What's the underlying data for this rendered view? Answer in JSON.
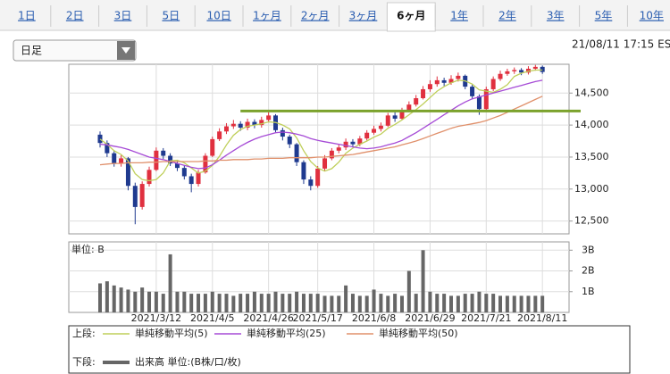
{
  "tabs": [
    {
      "label": "1日",
      "active": false
    },
    {
      "label": "2日",
      "active": false
    },
    {
      "label": "3日",
      "active": false
    },
    {
      "label": "5日",
      "active": false
    },
    {
      "label": "10日",
      "active": false
    },
    {
      "label": "1ヶ月",
      "active": false
    },
    {
      "label": "2ヶ月",
      "active": false
    },
    {
      "label": "3ヶ月",
      "active": false
    },
    {
      "label": "6ヶ月",
      "active": true
    },
    {
      "label": "1年",
      "active": false
    },
    {
      "label": "2年",
      "active": false
    },
    {
      "label": "3年",
      "active": false
    },
    {
      "label": "5年",
      "active": false
    },
    {
      "label": "10年",
      "active": false
    }
  ],
  "period_select": "日足",
  "timestamp": "21/08/11 17:15 ES",
  "chart_data": [
    {
      "type": "candlestick",
      "legend_label": "上段:",
      "up_color": "#e0303f",
      "down_color": "#1f3a8f",
      "grid": true,
      "ylim": [
        12300,
        14950
      ],
      "yticks": [
        {
          "value": 12500,
          "label": "12,500"
        },
        {
          "value": 13000,
          "label": "13,000"
        },
        {
          "value": 13500,
          "label": "13,500"
        },
        {
          "value": 14000,
          "label": "14,000"
        },
        {
          "value": 14500,
          "label": "14,500"
        }
      ],
      "open": [
        13850,
        13720,
        13560,
        13400,
        13480,
        13050,
        12720,
        13080,
        13300,
        13600,
        13520,
        13400,
        13330,
        13200,
        13080,
        13260,
        13520,
        13780,
        13900,
        13980,
        14020,
        13960,
        14050,
        14000,
        14080,
        14150,
        13920,
        13820,
        13700,
        13420,
        13150,
        13050,
        13320,
        13480,
        13600,
        13650,
        13740,
        13700,
        13790,
        13880,
        13940,
        13990,
        14150,
        14100,
        14230,
        14320,
        14420,
        14560,
        14640,
        14700,
        14660,
        14720,
        14770,
        14600,
        14450,
        14250,
        14560,
        14720,
        14800,
        14840,
        14860,
        14820,
        14880,
        14910
      ],
      "high": [
        13900,
        13760,
        13600,
        13530,
        13500,
        13100,
        13120,
        13350,
        13650,
        13640,
        13560,
        13450,
        13370,
        13240,
        13300,
        13560,
        13820,
        13950,
        14030,
        14080,
        14060,
        14100,
        14090,
        14130,
        14200,
        14170,
        13960,
        13850,
        13720,
        13450,
        13200,
        13360,
        13530,
        13640,
        13700,
        13790,
        13780,
        13830,
        13920,
        13990,
        14040,
        14190,
        14200,
        14270,
        14370,
        14470,
        14610,
        14700,
        14760,
        14740,
        14780,
        14820,
        14790,
        14630,
        14480,
        14600,
        14760,
        14850,
        14880,
        14900,
        14890,
        14920,
        14940,
        14930
      ],
      "low": [
        13650,
        13500,
        13350,
        13350,
        12980,
        12450,
        12680,
        13040,
        13280,
        13470,
        13360,
        13280,
        13150,
        12950,
        13040,
        13240,
        13500,
        13750,
        13860,
        13940,
        13910,
        13920,
        13950,
        13960,
        14040,
        13880,
        13760,
        13640,
        13360,
        13080,
        12980,
        13020,
        13290,
        13450,
        13560,
        13610,
        13650,
        13670,
        13760,
        13850,
        13900,
        13970,
        14050,
        14080,
        14200,
        14290,
        14400,
        14520,
        14600,
        14610,
        14630,
        14680,
        14560,
        14400,
        14160,
        14230,
        14530,
        14690,
        14770,
        14800,
        14780,
        14790,
        14850,
        14800
      ],
      "close": [
        13720,
        13560,
        13400,
        13480,
        13050,
        12720,
        13080,
        13300,
        13600,
        13520,
        13400,
        13330,
        13200,
        13080,
        13260,
        13520,
        13780,
        13900,
        13980,
        14020,
        13960,
        14050,
        14000,
        14080,
        14150,
        13920,
        13820,
        13700,
        13420,
        13150,
        13050,
        13320,
        13480,
        13600,
        13650,
        13740,
        13700,
        13790,
        13880,
        13940,
        13990,
        14150,
        14100,
        14230,
        14320,
        14420,
        14560,
        14640,
        14700,
        14660,
        14720,
        14770,
        14600,
        14450,
        14250,
        14560,
        14720,
        14800,
        14840,
        14860,
        14820,
        14880,
        14910,
        14830
      ],
      "lines": [
        {
          "name": "単純移動平均(5)",
          "color": "#bfcf5a",
          "values": [
            13780,
            13700,
            13600,
            13540,
            13440,
            13240,
            13150,
            13130,
            13150,
            13250,
            13440,
            13450,
            13410,
            13330,
            13250,
            13280,
            13370,
            13510,
            13690,
            13840,
            13930,
            13980,
            14000,
            14020,
            14050,
            14040,
            14000,
            13940,
            13800,
            13600,
            13430,
            13330,
            13280,
            13320,
            13420,
            13560,
            13640,
            13700,
            13750,
            13810,
            13860,
            13950,
            14010,
            14080,
            14160,
            14240,
            14330,
            14430,
            14530,
            14600,
            14660,
            14700,
            14690,
            14640,
            14550,
            14530,
            14510,
            14560,
            14630,
            14760,
            14810,
            14840,
            14860,
            14860
          ]
        },
        {
          "name": "単純移動平均(25)",
          "color": "#a64bd6",
          "values": [
            13700,
            13690,
            13670,
            13650,
            13620,
            13580,
            13540,
            13500,
            13480,
            13460,
            13430,
            13400,
            13370,
            13340,
            13320,
            13330,
            13380,
            13450,
            13530,
            13600,
            13670,
            13730,
            13780,
            13820,
            13850,
            13880,
            13890,
            13880,
            13860,
            13830,
            13790,
            13760,
            13740,
            13720,
            13700,
            13680,
            13660,
            13640,
            13630,
            13640,
            13660,
            13690,
            13720,
            13760,
            13820,
            13880,
            13950,
            14020,
            14090,
            14160,
            14230,
            14300,
            14360,
            14410,
            14440,
            14470,
            14500,
            14530,
            14560,
            14590,
            14620,
            14650,
            14680,
            14700
          ]
        },
        {
          "name": "単純移動平均(50)",
          "color": "#e0906b",
          "values": [
            13380,
            13390,
            13400,
            13400,
            13410,
            13410,
            13410,
            13420,
            13420,
            13430,
            13430,
            13430,
            13430,
            13430,
            13430,
            13440,
            13440,
            13450,
            13450,
            13460,
            13460,
            13460,
            13470,
            13470,
            13480,
            13480,
            13480,
            13490,
            13490,
            13490,
            13490,
            13500,
            13500,
            13510,
            13520,
            13530,
            13540,
            13560,
            13580,
            13600,
            13620,
            13640,
            13660,
            13690,
            13720,
            13750,
            13790,
            13830,
            13870,
            13910,
            13950,
            13980,
            14000,
            14020,
            14040,
            14070,
            14110,
            14150,
            14200,
            14250,
            14300,
            14350,
            14400,
            14450
          ]
        }
      ],
      "reference_lines": [
        {
          "value": 14220,
          "color": "#7ba22c"
        }
      ]
    },
    {
      "type": "bar",
      "legend_label": "下段:",
      "unit_label": "単位: B",
      "name": "出来高 単位:(B株/口/枚)",
      "color": "#666666",
      "grid": true,
      "ylim": [
        0,
        3.4
      ],
      "yticks": [
        {
          "value": 1,
          "label": "1B"
        },
        {
          "value": 2,
          "label": "2B"
        },
        {
          "value": 3,
          "label": "3B"
        }
      ],
      "categories": [
        null,
        null,
        null,
        null,
        null,
        null,
        null,
        null,
        "2021/3/12",
        null,
        null,
        null,
        null,
        null,
        null,
        null,
        "2021/4/5",
        null,
        null,
        null,
        null,
        null,
        null,
        null,
        "2021/4/26",
        null,
        null,
        null,
        null,
        null,
        null,
        "2021/5/17",
        null,
        null,
        null,
        null,
        null,
        null,
        null,
        "2021/6/8",
        null,
        null,
        null,
        null,
        null,
        null,
        null,
        "2021/6/29",
        null,
        null,
        null,
        null,
        null,
        null,
        null,
        "2021/7/21",
        null,
        null,
        null,
        null,
        null,
        null,
        null,
        "2021/8/11"
      ],
      "values": [
        1.4,
        1.5,
        1.3,
        1.2,
        1.1,
        1.0,
        1.2,
        1.0,
        1.0,
        0.9,
        2.8,
        1.0,
        1.0,
        0.9,
        0.9,
        0.9,
        1.0,
        0.9,
        0.9,
        0.8,
        0.9,
        0.9,
        1.0,
        0.9,
        0.9,
        1.0,
        0.9,
        0.9,
        1.0,
        0.9,
        0.9,
        0.9,
        0.8,
        0.8,
        0.8,
        1.3,
        0.9,
        0.8,
        0.8,
        1.1,
        0.9,
        0.8,
        0.9,
        0.8,
        2.0,
        0.9,
        3.0,
        1.0,
        0.9,
        0.9,
        0.8,
        0.8,
        0.9,
        0.9,
        1.0,
        0.9,
        0.9,
        0.8,
        0.8,
        0.8,
        0.8,
        0.8,
        0.8,
        0.8
      ]
    }
  ]
}
